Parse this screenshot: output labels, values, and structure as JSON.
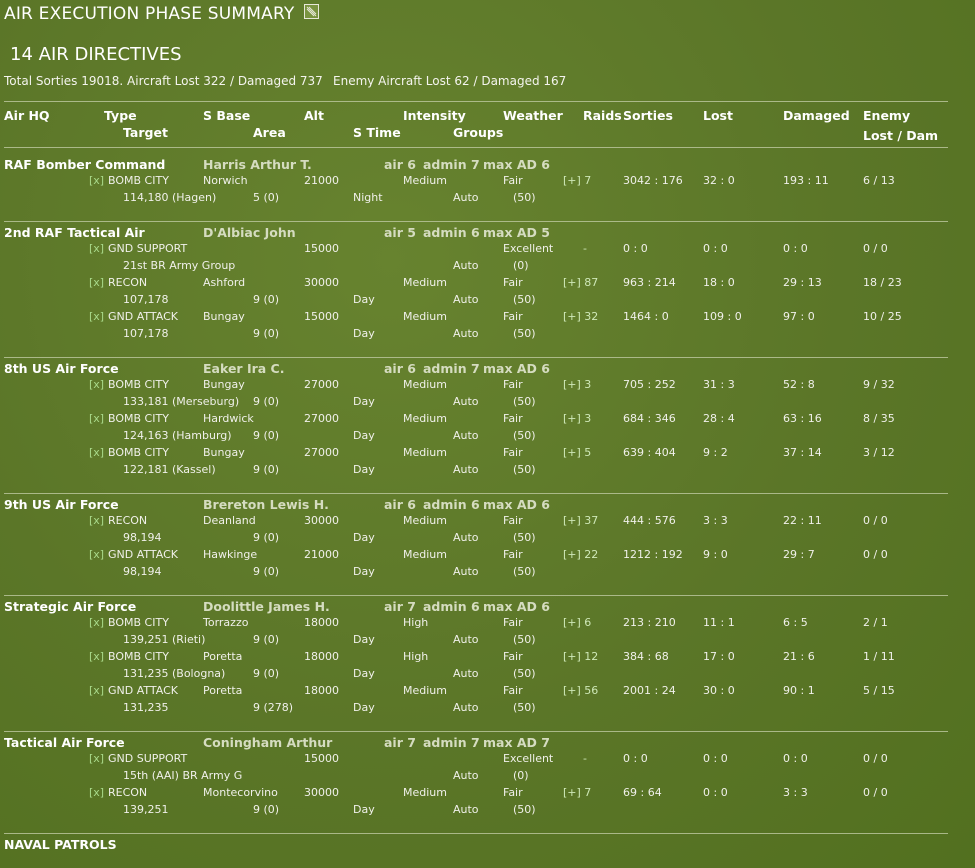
{
  "title": "AIR EXECUTION PHASE SUMMARY",
  "subtitle": "14 AIR DIRECTIVES",
  "totals": "Total Sorties 19018. Aircraft Lost 322 / Damaged 737",
  "enemy_totals": "Enemy Aircraft Lost 62 / Damaged 167",
  "headers": {
    "air_hq": "Air HQ",
    "type": "Type",
    "target": "Target",
    "s_base": "S Base",
    "area": "Area",
    "alt": "Alt",
    "s_time": "S Time",
    "intensity": "Intensity",
    "groups": "Groups",
    "weather": "Weather",
    "raids": "Raids",
    "sorties": "Sorties",
    "lost": "Lost",
    "damaged": "Damaged",
    "enemy": "Enemy",
    "enemy_lost_dam": "Lost / Dam"
  },
  "icons": {
    "title_icon": "checkbox-icon"
  },
  "colors": {
    "background": "#5e7a2a",
    "text": "#f2f2ee",
    "toggle": "#a9d98a"
  },
  "hqs": [
    {
      "name": "RAF Bomber Command",
      "commander": "Harris Arthur T.",
      "air": "air 6",
      "admin": "admin 7",
      "max_ad": "max AD 6",
      "directives": [
        {
          "toggle": "[x]",
          "type": "BOMB CITY",
          "base": "Norwich",
          "alt": "21000",
          "intensity": "Medium",
          "weather": "Fair",
          "raids": "[+] 7",
          "sorties": "3042 : 176",
          "lost": "32 : 0",
          "damaged": "193 : 11",
          "enemy": "6 / 13",
          "target": "114,180 (Hagen)",
          "area": "5 (0)",
          "stime": "Night",
          "groups": "Auto",
          "groups_count": "(50)"
        }
      ]
    },
    {
      "name": "2nd RAF Tactical Air",
      "commander": "D'Albiac John",
      "air": "air 5",
      "admin": "admin 6",
      "max_ad": "max AD 5",
      "directives": [
        {
          "toggle": "[x]",
          "type": "GND SUPPORT",
          "base": "",
          "alt": "15000",
          "intensity": "",
          "weather": "Excellent",
          "raids": "-",
          "sorties": "0 : 0",
          "lost": "0 : 0",
          "damaged": "0 : 0",
          "enemy": "0 / 0",
          "target": "21st BR Army Group",
          "area": "",
          "stime": "",
          "groups": "Auto",
          "groups_count": "(0)"
        },
        {
          "toggle": "[x]",
          "type": "RECON",
          "base": "Ashford",
          "alt": "30000",
          "intensity": "Medium",
          "weather": "Fair",
          "raids": "[+] 87",
          "sorties": "963 : 214",
          "lost": "18 : 0",
          "damaged": "29 : 13",
          "enemy": "18 / 23",
          "target": "107,178",
          "area": "9 (0)",
          "stime": "Day",
          "groups": "Auto",
          "groups_count": "(50)"
        },
        {
          "toggle": "[x]",
          "type": "GND ATTACK",
          "base": "Bungay",
          "alt": "15000",
          "intensity": "Medium",
          "weather": "Fair",
          "raids": "[+] 32",
          "sorties": "1464 : 0",
          "lost": "109 : 0",
          "damaged": "97 : 0",
          "enemy": "10 / 25",
          "target": "107,178",
          "area": "9 (0)",
          "stime": "Day",
          "groups": "Auto",
          "groups_count": "(50)"
        }
      ]
    },
    {
      "name": "8th US Air Force",
      "commander": "Eaker Ira C.",
      "air": "air 6",
      "admin": "admin 7",
      "max_ad": "max AD 6",
      "directives": [
        {
          "toggle": "[x]",
          "type": "BOMB CITY",
          "base": "Bungay",
          "alt": "27000",
          "intensity": "Medium",
          "weather": "Fair",
          "raids": "[+] 3",
          "sorties": "705 : 252",
          "lost": "31 : 3",
          "damaged": "52 : 8",
          "enemy": "9 / 32",
          "target": "133,181 (Merseburg)",
          "area": "9 (0)",
          "stime": "Day",
          "groups": "Auto",
          "groups_count": "(50)"
        },
        {
          "toggle": "[x]",
          "type": "BOMB CITY",
          "base": "Hardwick",
          "alt": "27000",
          "intensity": "Medium",
          "weather": "Fair",
          "raids": "[+] 3",
          "sorties": "684 : 346",
          "lost": "28 : 4",
          "damaged": "63 : 16",
          "enemy": "8 / 35",
          "target": "124,163 (Hamburg)",
          "area": "9 (0)",
          "stime": "Day",
          "groups": "Auto",
          "groups_count": "(50)"
        },
        {
          "toggle": "[x]",
          "type": "BOMB CITY",
          "base": "Bungay",
          "alt": "27000",
          "intensity": "Medium",
          "weather": "Fair",
          "raids": "[+] 5",
          "sorties": "639 : 404",
          "lost": "9 : 2",
          "damaged": "37 : 14",
          "enemy": "3 / 12",
          "target": "122,181 (Kassel)",
          "area": "9 (0)",
          "stime": "Day",
          "groups": "Auto",
          "groups_count": "(50)"
        }
      ]
    },
    {
      "name": "9th US Air Force",
      "commander": "Brereton Lewis H.",
      "air": "air 6",
      "admin": "admin 6",
      "max_ad": "max AD 6",
      "directives": [
        {
          "toggle": "[x]",
          "type": "RECON",
          "base": "Deanland",
          "alt": "30000",
          "intensity": "Medium",
          "weather": "Fair",
          "raids": "[+] 37",
          "sorties": "444 : 576",
          "lost": "3 : 3",
          "damaged": "22 : 11",
          "enemy": "0 / 0",
          "target": "98,194",
          "area": "9 (0)",
          "stime": "Day",
          "groups": "Auto",
          "groups_count": "(50)"
        },
        {
          "toggle": "[x]",
          "type": "GND ATTACK",
          "base": "Hawkinge",
          "alt": "21000",
          "intensity": "Medium",
          "weather": "Fair",
          "raids": "[+] 22",
          "sorties": "1212 : 192",
          "lost": "9 : 0",
          "damaged": "29 : 7",
          "enemy": "0 / 0",
          "target": "98,194",
          "area": "9 (0)",
          "stime": "Day",
          "groups": "Auto",
          "groups_count": "(50)"
        }
      ]
    },
    {
      "name": "Strategic Air Force",
      "commander": "Doolittle James H.",
      "air": "air 7",
      "admin": "admin 6",
      "max_ad": "max AD 6",
      "directives": [
        {
          "toggle": "[x]",
          "type": "BOMB CITY",
          "base": "Torrazzo",
          "alt": "18000",
          "intensity": "High",
          "weather": "Fair",
          "raids": "[+] 6",
          "sorties": "213 : 210",
          "lost": "11 : 1",
          "damaged": "6 : 5",
          "enemy": "2 / 1",
          "target": "139,251 (Rieti)",
          "area": "9 (0)",
          "stime": "Day",
          "groups": "Auto",
          "groups_count": "(50)"
        },
        {
          "toggle": "[x]",
          "type": "BOMB CITY",
          "base": "Poretta",
          "alt": "18000",
          "intensity": "High",
          "weather": "Fair",
          "raids": "[+] 12",
          "sorties": "384 : 68",
          "lost": "17 : 0",
          "damaged": "21 : 6",
          "enemy": "1 / 11",
          "target": "131,235 (Bologna)",
          "area": "9 (0)",
          "stime": "Day",
          "groups": "Auto",
          "groups_count": "(50)"
        },
        {
          "toggle": "[x]",
          "type": "GND ATTACK",
          "base": "Poretta",
          "alt": "18000",
          "intensity": "Medium",
          "weather": "Fair",
          "raids": "[+] 56",
          "sorties": "2001 : 24",
          "lost": "30 : 0",
          "damaged": "90 : 1",
          "enemy": "5 / 15",
          "target": "131,235",
          "area": "9 (278)",
          "stime": "Day",
          "groups": "Auto",
          "groups_count": "(50)"
        }
      ]
    },
    {
      "name": "Tactical Air Force",
      "commander": "Coningham Arthur",
      "air": "air 7",
      "admin": "admin 7",
      "max_ad": "max AD 7",
      "directives": [
        {
          "toggle": "[x]",
          "type": "GND SUPPORT",
          "base": "",
          "alt": "15000",
          "intensity": "",
          "weather": "Excellent",
          "raids": "-",
          "sorties": "0 : 0",
          "lost": "0 : 0",
          "damaged": "0 : 0",
          "enemy": "0 / 0",
          "target": "15th (AAI) BR Army G",
          "area": "",
          "stime": "",
          "groups": "Auto",
          "groups_count": "(0)"
        },
        {
          "toggle": "[x]",
          "type": "RECON",
          "base": "Montecorvino",
          "alt": "30000",
          "intensity": "Medium",
          "weather": "Fair",
          "raids": "[+] 7",
          "sorties": "69 : 64",
          "lost": "0 : 0",
          "damaged": "3 : 3",
          "enemy": "0 / 0",
          "target": "139,251",
          "area": "9 (0)",
          "stime": "Day",
          "groups": "Auto",
          "groups_count": "(50)"
        }
      ]
    }
  ],
  "footer": "NAVAL PATROLS"
}
